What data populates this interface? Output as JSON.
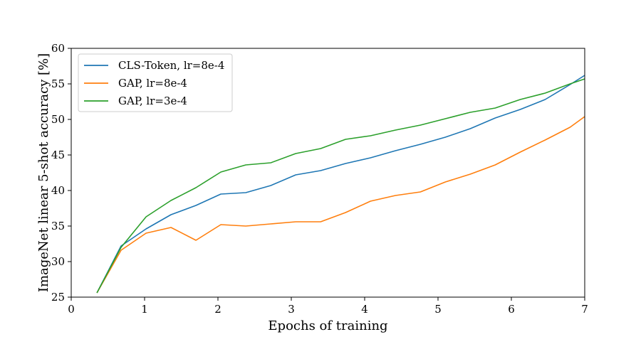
{
  "chart_data": {
    "type": "line",
    "title": "",
    "xlabel": "Epochs of training",
    "ylabel": "ImageNet linear 5-shot accuracy [%]",
    "xlim": [
      0,
      7
    ],
    "ylim": [
      25,
      60
    ],
    "xticks": [
      0,
      1,
      2,
      3,
      4,
      5,
      6,
      7
    ],
    "yticks": [
      25,
      30,
      35,
      40,
      45,
      50,
      55,
      60
    ],
    "grid": false,
    "legend_position": "top-left",
    "series": [
      {
        "name": "CLS-Token, lr=8e-4",
        "color": "#1f77b4",
        "x": [
          0.35,
          0.68,
          1.02,
          1.36,
          1.7,
          2.04,
          2.38,
          2.72,
          3.06,
          3.4,
          3.74,
          4.08,
          4.42,
          4.76,
          5.1,
          5.44,
          5.78,
          6.12,
          6.46,
          6.8,
          7.0
        ],
        "y": [
          25.6,
          32.2,
          34.6,
          36.6,
          37.9,
          39.5,
          39.7,
          40.7,
          42.2,
          42.8,
          43.8,
          44.6,
          45.6,
          46.5,
          47.5,
          48.7,
          50.2,
          51.4,
          52.8,
          54.9,
          56.2
        ]
      },
      {
        "name": "GAP, lr=8e-4",
        "color": "#ff7f0e",
        "x": [
          0.35,
          0.68,
          1.02,
          1.36,
          1.7,
          2.04,
          2.38,
          2.72,
          3.06,
          3.4,
          3.74,
          4.08,
          4.42,
          4.76,
          5.1,
          5.44,
          5.78,
          6.12,
          6.46,
          6.8,
          7.0
        ],
        "y": [
          25.6,
          31.6,
          34.0,
          34.8,
          33.0,
          35.2,
          35.0,
          35.3,
          35.6,
          35.6,
          36.9,
          38.5,
          39.3,
          39.8,
          41.2,
          42.3,
          43.6,
          45.4,
          47.1,
          48.9,
          50.4
        ]
      },
      {
        "name": "GAP, lr=3e-4",
        "color": "#2ca02c",
        "x": [
          0.35,
          0.68,
          1.02,
          1.36,
          1.7,
          2.04,
          2.38,
          2.72,
          3.06,
          3.4,
          3.74,
          4.08,
          4.42,
          4.76,
          5.1,
          5.44,
          5.78,
          6.12,
          6.46,
          6.8,
          7.0
        ],
        "y": [
          25.6,
          32.0,
          36.3,
          38.6,
          40.4,
          42.6,
          43.6,
          43.9,
          45.2,
          45.9,
          47.2,
          47.7,
          48.5,
          49.2,
          50.1,
          51.0,
          51.6,
          52.8,
          53.7,
          55.0,
          55.7
        ]
      }
    ]
  }
}
